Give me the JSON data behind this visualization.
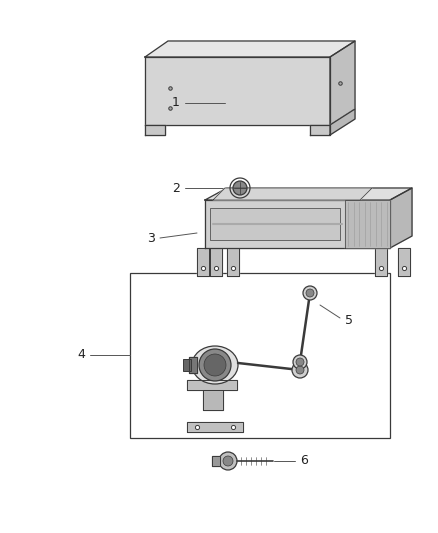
{
  "background_color": "#ffffff",
  "line_color": "#3a3a3a",
  "label_color": "#222222",
  "fig_width": 4.38,
  "fig_height": 5.33,
  "dpi": 100
}
